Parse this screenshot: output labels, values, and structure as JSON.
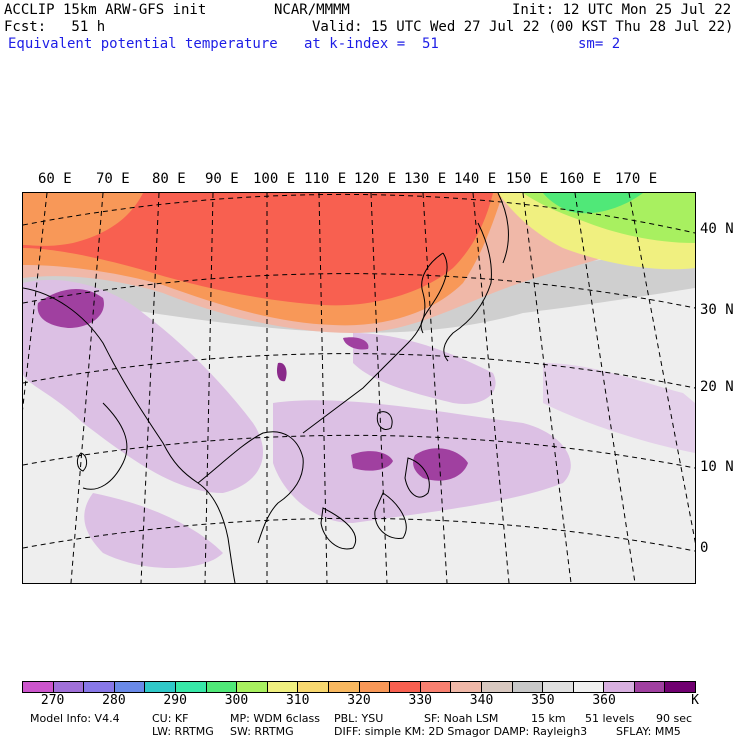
{
  "header": {
    "model_line": "ACCLIP 15km ARW-GFS init",
    "center": "NCAR/MMMM",
    "init": "Init: 12 UTC Mon 25 Jul 22",
    "fcst": "Fcst:   51 h",
    "valid": "Valid: 15 UTC Wed 27 Jul 22 (00 KST Thu 28 Jul 22)",
    "field": "Equivalent potential temperature",
    "level": "at k-index =  51",
    "smooth": "sm= 2"
  },
  "map": {
    "lon_labels": [
      "60 E",
      "70 E",
      "80 E",
      "90 E",
      "100 E",
      "110 E",
      "120 E",
      "130 E",
      "140 E",
      "150 E",
      "160 E",
      "170 E"
    ],
    "lat_labels": [
      "40 N",
      "30 N",
      "20 N",
      "10 N",
      "0"
    ],
    "region": "East and South Asia, Western Pacific"
  },
  "colorbar": {
    "colors": [
      "#cc55cc",
      "#a070d8",
      "#8878e8",
      "#6a8ae8",
      "#30c8c8",
      "#38e8a8",
      "#50e878",
      "#a8f060",
      "#f0f080",
      "#f8d870",
      "#f8b860",
      "#f89858",
      "#f86050",
      "#f88070",
      "#f0b8a8",
      "#d8c8c0",
      "#c8c8c8",
      "#e0e0e0",
      "#f0f0f0",
      "#d8b0e0",
      "#a040a0",
      "#700070"
    ],
    "tick_labels": [
      "270",
      "280",
      "290",
      "300",
      "310",
      "320",
      "330",
      "340",
      "350",
      "360",
      "K"
    ]
  },
  "footer": {
    "model_info": "Model Info: V4.4",
    "cu": "CU: KF",
    "mp": "MP: WDM 6class",
    "pbl": "PBL: YSU",
    "sf": "SF: Noah LSM",
    "res": "15 km",
    "levels": "51 levels",
    "dt": "90 sec",
    "lw": "LW: RRTMG",
    "sw": "SW: RRTMG",
    "diff": "DIFF: simple KM: 2D Smagor DAMP: Rayleigh3",
    "sflay": "SFLAY: MM5"
  }
}
